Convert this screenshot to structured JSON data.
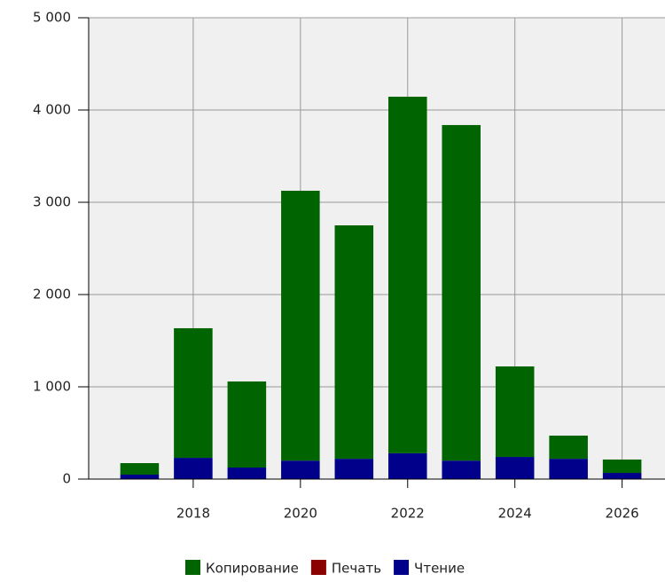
{
  "chart_data": {
    "type": "bar",
    "stacked": true,
    "x": [
      2017,
      2018,
      2019,
      2020,
      2021,
      2022,
      2023,
      2024,
      2025,
      2026
    ],
    "series": [
      {
        "name": "Копирование",
        "color": "#006400",
        "values": [
          125,
          1405,
          933,
          2925,
          2530,
          3864,
          3637,
          981,
          251,
          145
        ]
      },
      {
        "name": "Печать",
        "color": "#8b0000",
        "values": [
          0,
          0,
          0,
          0,
          0,
          0,
          0,
          0,
          0,
          0
        ]
      },
      {
        "name": "Чтение",
        "color": "#00008b",
        "values": [
          48,
          230,
          125,
          200,
          220,
          280,
          200,
          240,
          220,
          67
        ]
      }
    ],
    "xlim": [
      2016.05,
      2026.8
    ],
    "xticks": [
      2018,
      2020,
      2022,
      2024,
      2026
    ],
    "ylim": [
      0,
      5000
    ],
    "yticks": [
      0,
      {
        "value": 1000,
        "label": "1 000"
      },
      {
        "value": 2000,
        "label": "2 000"
      },
      {
        "value": 3000,
        "label": "3 000"
      },
      {
        "value": 4000,
        "label": "4 000"
      },
      {
        "value": 5000,
        "label": "5 000"
      }
    ],
    "grid": true,
    "legend": "bottom"
  }
}
